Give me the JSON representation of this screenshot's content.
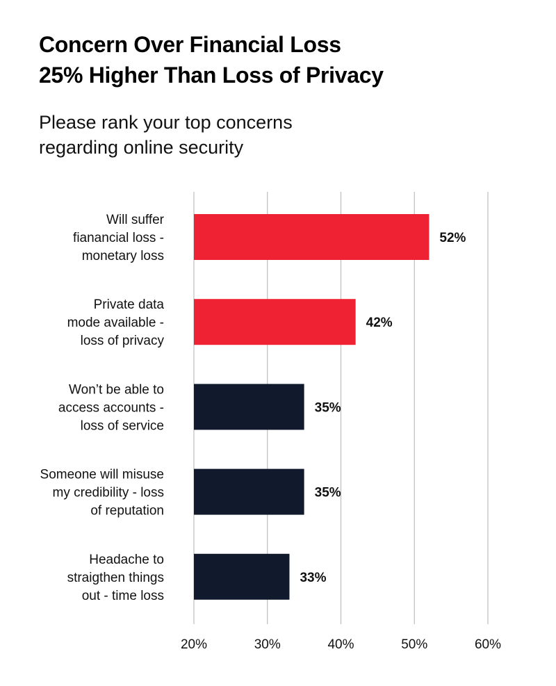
{
  "title_lines": [
    "Concern Over Financial Loss",
    "25% Higher Than Loss of Privacy"
  ],
  "subtitle_lines": [
    "Please rank your top concerns",
    "regarding online security"
  ],
  "colors": {
    "highlight": "#ee2233",
    "default": "#111a2c",
    "grid": "#bdbdbd"
  },
  "chart_data": {
    "type": "bar",
    "orientation": "horizontal",
    "categories": [
      [
        "Will suffer",
        "fianancial loss -",
        "monetary loss"
      ],
      [
        "Private data",
        "mode available -",
        "loss of privacy"
      ],
      [
        "Won’t be able to",
        "access accounts -",
        "loss of service"
      ],
      [
        "Someone will misuse",
        "my credibility - loss",
        "of reputation"
      ],
      [
        "Headache to",
        "straigthen things",
        "out - time loss"
      ]
    ],
    "values": [
      52,
      42,
      35,
      35,
      33
    ],
    "value_labels": [
      "52%",
      "42%",
      "35%",
      "35%",
      "33%"
    ],
    "highlighted": [
      true,
      true,
      false,
      false,
      false
    ],
    "xlim": [
      20,
      60
    ],
    "xticks": [
      20,
      30,
      40,
      50,
      60
    ],
    "xtick_labels": [
      "20%",
      "30%",
      "40%",
      "50%",
      "60%"
    ],
    "grid": "vertical"
  }
}
